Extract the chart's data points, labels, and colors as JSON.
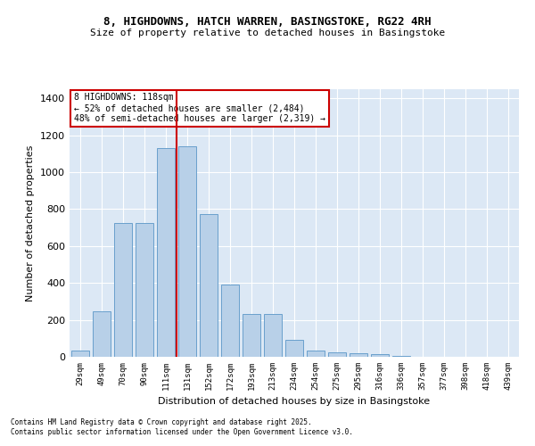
{
  "title_line1": "8, HIGHDOWNS, HATCH WARREN, BASINGSTOKE, RG22 4RH",
  "title_line2": "Size of property relative to detached houses in Basingstoke",
  "xlabel": "Distribution of detached houses by size in Basingstoke",
  "ylabel": "Number of detached properties",
  "categories": [
    "29sqm",
    "49sqm",
    "70sqm",
    "90sqm",
    "111sqm",
    "131sqm",
    "152sqm",
    "172sqm",
    "193sqm",
    "213sqm",
    "234sqm",
    "254sqm",
    "275sqm",
    "295sqm",
    "316sqm",
    "336sqm",
    "357sqm",
    "377sqm",
    "398sqm",
    "418sqm",
    "439sqm"
  ],
  "values": [
    35,
    245,
    725,
    725,
    1130,
    1140,
    775,
    390,
    230,
    230,
    90,
    35,
    25,
    20,
    15,
    5,
    0,
    0,
    0,
    0,
    0
  ],
  "bar_color": "#b8d0e8",
  "bar_edge_color": "#6aa0cc",
  "marker_color": "#cc0000",
  "annotation_line1": "8 HIGHDOWNS: 118sqm",
  "annotation_line2": "← 52% of detached houses are smaller (2,484)",
  "annotation_line3": "48% of semi-detached houses are larger (2,319) →",
  "annotation_box_color": "#cc0000",
  "ylim": [
    0,
    1450
  ],
  "yticks": [
    0,
    200,
    400,
    600,
    800,
    1000,
    1200,
    1400
  ],
  "background_color": "#dce8f5",
  "footer_line1": "Contains HM Land Registry data © Crown copyright and database right 2025.",
  "footer_line2": "Contains public sector information licensed under the Open Government Licence v3.0."
}
